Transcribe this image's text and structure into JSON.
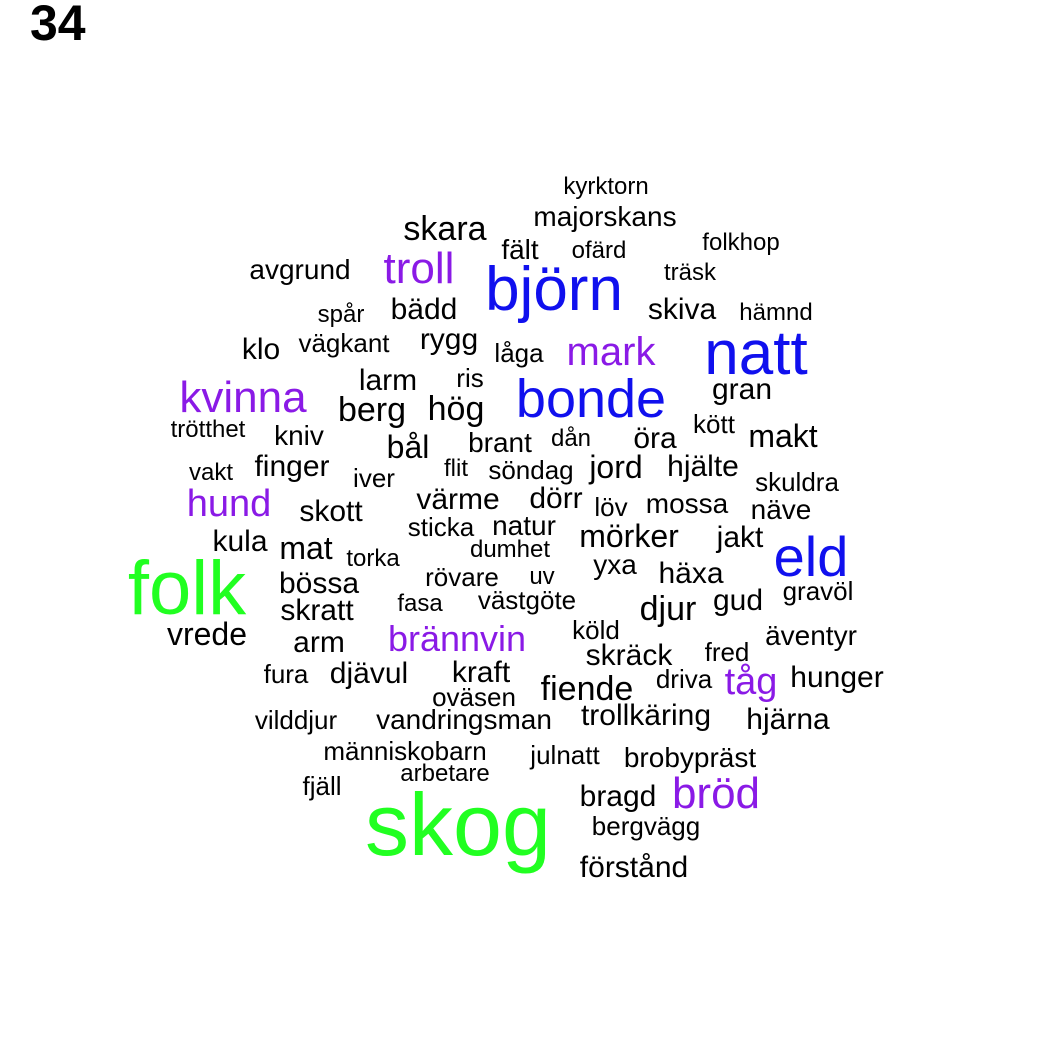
{
  "page_number": "34",
  "colors": {
    "green": "#21ff21",
    "blue": "#1010ee",
    "purple": "#8a1ae6",
    "black": "#000000"
  },
  "words": [
    {
      "text": "skog",
      "c": "green"
    },
    {
      "text": "folk",
      "c": "green"
    },
    {
      "text": "björn",
      "c": "blue"
    },
    {
      "text": "natt",
      "c": "blue"
    },
    {
      "text": "bonde",
      "c": "blue"
    },
    {
      "text": "eld",
      "c": "blue"
    },
    {
      "text": "troll",
      "c": "purple"
    },
    {
      "text": "kvinna",
      "c": "purple"
    },
    {
      "text": "mark",
      "c": "purple"
    },
    {
      "text": "hund",
      "c": "purple"
    },
    {
      "text": "brännvin",
      "c": "purple"
    },
    {
      "text": "bröd",
      "c": "purple"
    },
    {
      "text": "tåg",
      "c": "purple"
    },
    {
      "text": "kyrktorn",
      "c": "black"
    },
    {
      "text": "majorskans",
      "c": "black"
    },
    {
      "text": "skara",
      "c": "black"
    },
    {
      "text": "fält",
      "c": "black"
    },
    {
      "text": "ofärd",
      "c": "black"
    },
    {
      "text": "folkhop",
      "c": "black"
    },
    {
      "text": "avgrund",
      "c": "black"
    },
    {
      "text": "träsk",
      "c": "black"
    },
    {
      "text": "spår",
      "c": "black"
    },
    {
      "text": "bädd",
      "c": "black"
    },
    {
      "text": "skiva",
      "c": "black"
    },
    {
      "text": "hämnd",
      "c": "black"
    },
    {
      "text": "klo",
      "c": "black"
    },
    {
      "text": "vägkant",
      "c": "black"
    },
    {
      "text": "rygg",
      "c": "black"
    },
    {
      "text": "låga",
      "c": "black"
    },
    {
      "text": "larm",
      "c": "black"
    },
    {
      "text": "ris",
      "c": "black"
    },
    {
      "text": "gran",
      "c": "black"
    },
    {
      "text": "berg",
      "c": "black"
    },
    {
      "text": "hög",
      "c": "black"
    },
    {
      "text": "kött",
      "c": "black"
    },
    {
      "text": "trötthet",
      "c": "black"
    },
    {
      "text": "kniv",
      "c": "black"
    },
    {
      "text": "bål",
      "c": "black"
    },
    {
      "text": "brant",
      "c": "black"
    },
    {
      "text": "dån",
      "c": "black"
    },
    {
      "text": "öra",
      "c": "black"
    },
    {
      "text": "makt",
      "c": "black"
    },
    {
      "text": "vakt",
      "c": "black"
    },
    {
      "text": "finger",
      "c": "black"
    },
    {
      "text": "iver",
      "c": "black"
    },
    {
      "text": "flit",
      "c": "black"
    },
    {
      "text": "söndag",
      "c": "black"
    },
    {
      "text": "jord",
      "c": "black"
    },
    {
      "text": "hjälte",
      "c": "black"
    },
    {
      "text": "skuldra",
      "c": "black"
    },
    {
      "text": "skott",
      "c": "black"
    },
    {
      "text": "värme",
      "c": "black"
    },
    {
      "text": "dörr",
      "c": "black"
    },
    {
      "text": "löv",
      "c": "black"
    },
    {
      "text": "mossa",
      "c": "black"
    },
    {
      "text": "näve",
      "c": "black"
    },
    {
      "text": "sticka",
      "c": "black"
    },
    {
      "text": "natur",
      "c": "black"
    },
    {
      "text": "mörker",
      "c": "black"
    },
    {
      "text": "jakt",
      "c": "black"
    },
    {
      "text": "kula",
      "c": "black"
    },
    {
      "text": "mat",
      "c": "black"
    },
    {
      "text": "torka",
      "c": "black"
    },
    {
      "text": "dumhet",
      "c": "black"
    },
    {
      "text": "yxa",
      "c": "black"
    },
    {
      "text": "häxa",
      "c": "black"
    },
    {
      "text": "bössa",
      "c": "black"
    },
    {
      "text": "rövare",
      "c": "black"
    },
    {
      "text": "uv",
      "c": "black"
    },
    {
      "text": "gravöl",
      "c": "black"
    },
    {
      "text": "skratt",
      "c": "black"
    },
    {
      "text": "fasa",
      "c": "black"
    },
    {
      "text": "västgöte",
      "c": "black"
    },
    {
      "text": "djur",
      "c": "black"
    },
    {
      "text": "gud",
      "c": "black"
    },
    {
      "text": "vrede",
      "c": "black"
    },
    {
      "text": "arm",
      "c": "black"
    },
    {
      "text": "köld",
      "c": "black"
    },
    {
      "text": "äventyr",
      "c": "black"
    },
    {
      "text": "skräck",
      "c": "black"
    },
    {
      "text": "fred",
      "c": "black"
    },
    {
      "text": "fura",
      "c": "black"
    },
    {
      "text": "djävul",
      "c": "black"
    },
    {
      "text": "kraft",
      "c": "black"
    },
    {
      "text": "driva",
      "c": "black"
    },
    {
      "text": "hunger",
      "c": "black"
    },
    {
      "text": "fiende",
      "c": "black"
    },
    {
      "text": "oväsen",
      "c": "black"
    },
    {
      "text": "vilddjur",
      "c": "black"
    },
    {
      "text": "vandringsman",
      "c": "black"
    },
    {
      "text": "trollkäring",
      "c": "black"
    },
    {
      "text": "hjärna",
      "c": "black"
    },
    {
      "text": "människobarn",
      "c": "black"
    },
    {
      "text": "julnatt",
      "c": "black"
    },
    {
      "text": "brobypräst",
      "c": "black"
    },
    {
      "text": "arbetare",
      "c": "black"
    },
    {
      "text": "fjäll",
      "c": "black"
    },
    {
      "text": "bragd",
      "c": "black"
    },
    {
      "text": "bergvägg",
      "c": "black"
    },
    {
      "text": "förstånd",
      "c": "black"
    }
  ]
}
